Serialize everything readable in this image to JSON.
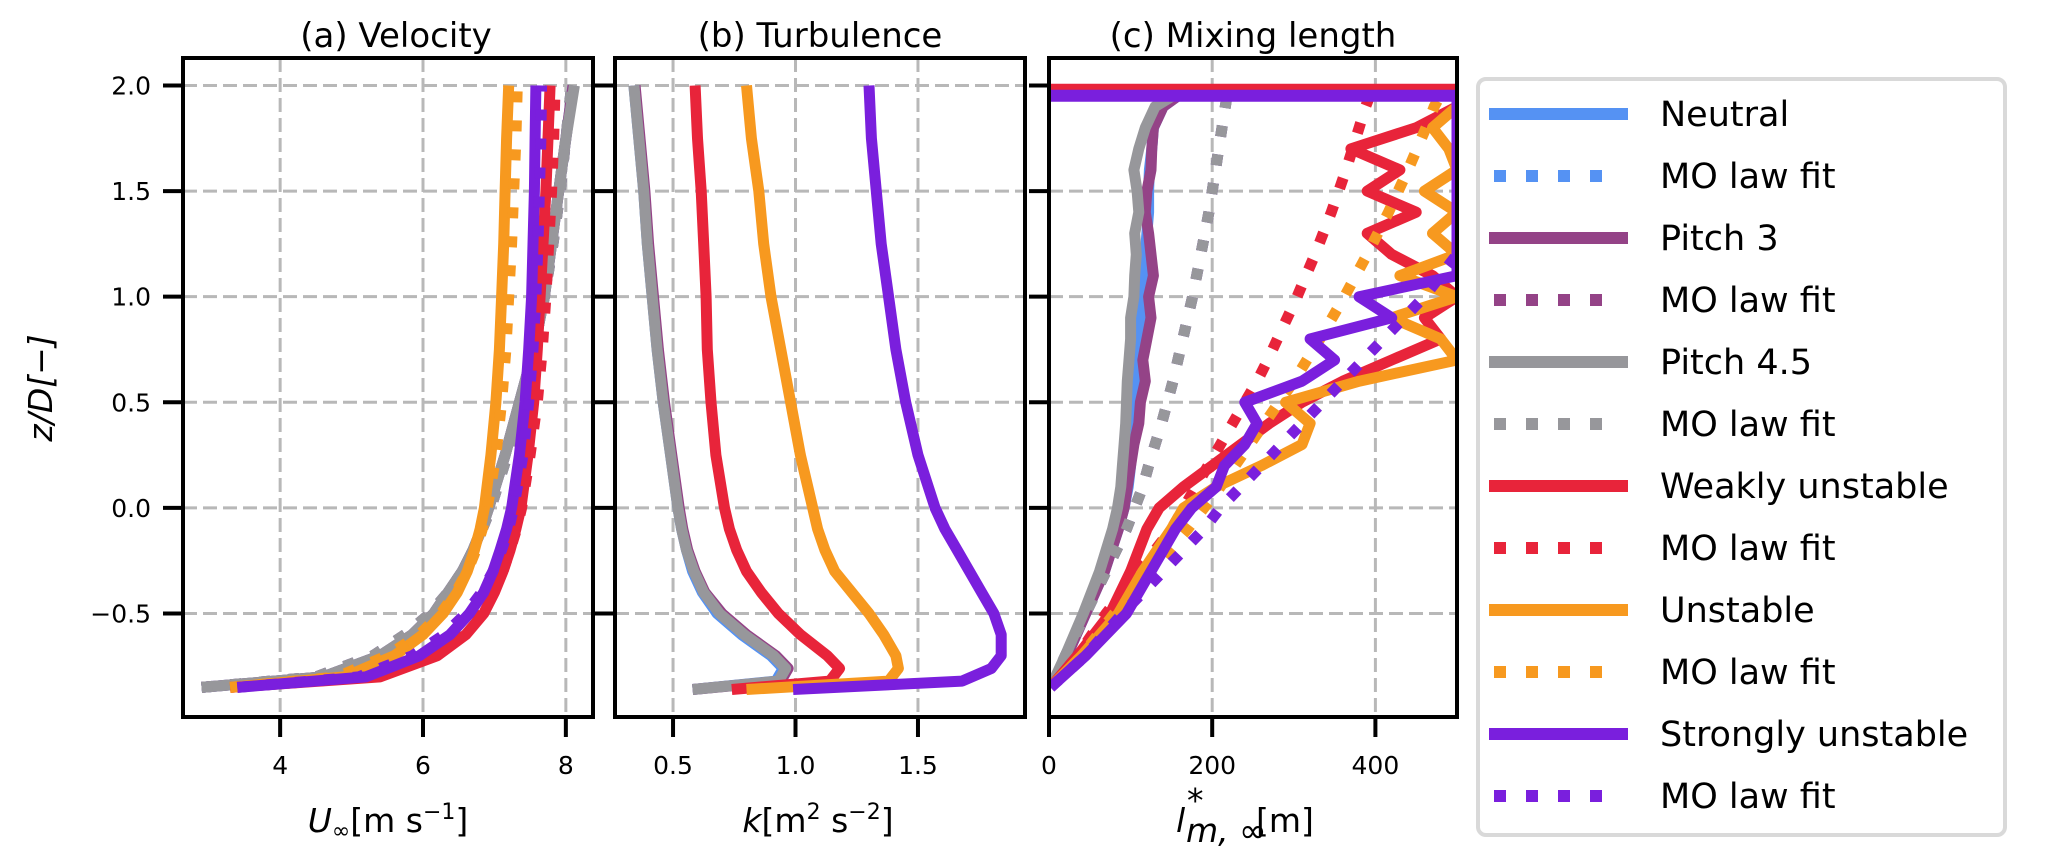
{
  "chart_data": [
    {
      "type": "line",
      "title": "(a) Velocity",
      "xlabel_main": "U",
      "xlabel_sub": "∞",
      "xlabel_unit": "[m s",
      "xlabel_sup": "−1",
      "xlabel_close": "]",
      "ylabel": "z/D[−]",
      "xlim": [
        2.64,
        8.38
      ],
      "ylim": [
        -0.99,
        2.13
      ],
      "xticks": [
        4,
        6,
        8
      ],
      "xtick_labels": [
        "4",
        "6",
        "8"
      ],
      "yticks": [
        2.0,
        1.5,
        1.0,
        0.5,
        0.0,
        -0.5
      ],
      "ytick_labels": [
        "2.0",
        "1.5",
        "1.0",
        "0.5",
        "0.0",
        "−0.5"
      ],
      "grid": true,
      "z": [
        -0.85,
        -0.8,
        -0.7,
        -0.6,
        -0.5,
        -0.4,
        -0.3,
        -0.2,
        -0.1,
        0.0,
        0.25,
        0.5,
        0.75,
        1.0,
        1.25,
        1.5,
        1.75,
        2.0
      ],
      "series": [
        {
          "name": "Neutral",
          "style": "solid",
          "values": [
            2.9,
            4.6,
            5.4,
            5.85,
            6.15,
            6.35,
            6.55,
            6.7,
            6.82,
            6.92,
            7.15,
            7.35,
            7.55,
            7.7,
            7.8,
            7.9,
            8.0,
            8.1
          ]
        },
        {
          "name": "Neutral MO law fit",
          "style": "dotted",
          "values": [
            2.9,
            4.5,
            5.3,
            5.75,
            6.1,
            6.35,
            6.55,
            6.7,
            6.83,
            6.95,
            7.18,
            7.38,
            7.55,
            7.7,
            7.82,
            7.92,
            8.0,
            8.08
          ]
        },
        {
          "name": "Pitch 3",
          "style": "solid",
          "values": [
            2.9,
            4.6,
            5.4,
            5.85,
            6.15,
            6.35,
            6.55,
            6.7,
            6.82,
            6.92,
            7.15,
            7.35,
            7.55,
            7.7,
            7.8,
            7.9,
            8.0,
            8.1
          ]
        },
        {
          "name": "Pitch 3 MO law fit",
          "style": "dotted",
          "values": [
            2.9,
            4.5,
            5.3,
            5.75,
            6.1,
            6.35,
            6.55,
            6.7,
            6.83,
            6.95,
            7.18,
            7.38,
            7.55,
            7.7,
            7.82,
            7.92,
            8.0,
            8.08
          ]
        },
        {
          "name": "Pitch 4.5",
          "style": "solid",
          "values": [
            2.9,
            4.6,
            5.4,
            5.85,
            6.15,
            6.35,
            6.55,
            6.7,
            6.82,
            6.92,
            7.15,
            7.35,
            7.55,
            7.7,
            7.8,
            7.9,
            8.0,
            8.12
          ]
        },
        {
          "name": "Pitch 4.5 MO law fit",
          "style": "dotted",
          "values": [
            2.9,
            4.5,
            5.3,
            5.75,
            6.1,
            6.35,
            6.55,
            6.7,
            6.83,
            6.95,
            7.18,
            7.38,
            7.55,
            7.7,
            7.82,
            7.92,
            8.0,
            8.08
          ]
        },
        {
          "name": "Weakly unstable",
          "style": "solid",
          "values": [
            3.3,
            5.4,
            6.2,
            6.6,
            6.85,
            7.0,
            7.12,
            7.22,
            7.3,
            7.37,
            7.47,
            7.55,
            7.6,
            7.64,
            7.68,
            7.72,
            7.75,
            7.78
          ]
        },
        {
          "name": "Weakly unstable MO law fit",
          "style": "dotted",
          "values": [
            3.3,
            5.3,
            6.1,
            6.5,
            6.8,
            6.98,
            7.12,
            7.22,
            7.31,
            7.38,
            7.5,
            7.6,
            7.67,
            7.72,
            7.76,
            7.8,
            7.83,
            7.85
          ]
        },
        {
          "name": "Unstable",
          "style": "solid",
          "values": [
            3.3,
            4.9,
            5.6,
            6.0,
            6.28,
            6.48,
            6.62,
            6.72,
            6.8,
            6.86,
            6.95,
            7.02,
            7.07,
            7.1,
            7.13,
            7.15,
            7.17,
            7.2
          ]
        },
        {
          "name": "Unstable MO law fit",
          "style": "dotted",
          "values": [
            3.3,
            4.8,
            5.5,
            5.95,
            6.25,
            6.46,
            6.62,
            6.74,
            6.83,
            6.9,
            7.02,
            7.1,
            7.16,
            7.2,
            7.24,
            7.27,
            7.3,
            7.32
          ]
        },
        {
          "name": "Strongly unstable",
          "style": "solid",
          "values": [
            3.4,
            5.2,
            5.95,
            6.38,
            6.65,
            6.85,
            6.98,
            7.08,
            7.17,
            7.24,
            7.35,
            7.43,
            7.48,
            7.52,
            7.54,
            7.56,
            7.57,
            7.58
          ]
        },
        {
          "name": "Strongly unstable MO law fit",
          "style": "dotted",
          "values": [
            3.4,
            5.1,
            5.85,
            6.3,
            6.6,
            6.82,
            6.98,
            7.1,
            7.2,
            7.27,
            7.4,
            7.48,
            7.54,
            7.58,
            7.61,
            7.63,
            7.65,
            7.66
          ]
        }
      ]
    },
    {
      "type": "line",
      "title": "(b) Turbulence",
      "xlabel_main": "k",
      "xlabel_unit": "[m",
      "xlabel_sup": "2",
      "xlabel_unit2": " s",
      "xlabel_sup2": "−2",
      "xlabel_close": "]",
      "xlim": [
        0.263,
        1.937
      ],
      "ylim": [
        -0.99,
        2.13
      ],
      "xticks": [
        0.5,
        1.0,
        1.5
      ],
      "xtick_labels": [
        "0.5",
        "1.0",
        "1.5"
      ],
      "yticks": [
        2.0,
        1.5,
        1.0,
        0.5,
        0.0,
        -0.5
      ],
      "grid": true,
      "z": [
        -0.86,
        -0.82,
        -0.76,
        -0.7,
        -0.6,
        -0.5,
        -0.4,
        -0.3,
        -0.2,
        -0.1,
        0.0,
        0.25,
        0.5,
        0.75,
        1.0,
        1.25,
        1.5,
        1.75,
        2.0
      ],
      "series": [
        {
          "name": "Neutral",
          "style": "solid",
          "values": [
            0.58,
            0.92,
            0.95,
            0.9,
            0.78,
            0.68,
            0.62,
            0.58,
            0.555,
            0.535,
            0.52,
            0.49,
            0.46,
            0.435,
            0.415,
            0.395,
            0.38,
            0.36,
            0.34
          ]
        },
        {
          "name": "Pitch 3",
          "style": "solid",
          "values": [
            0.58,
            0.94,
            0.97,
            0.92,
            0.8,
            0.7,
            0.63,
            0.59,
            0.56,
            0.54,
            0.525,
            0.495,
            0.465,
            0.44,
            0.42,
            0.4,
            0.385,
            0.365,
            0.345
          ]
        },
        {
          "name": "Pitch 4.5",
          "style": "solid",
          "values": [
            0.58,
            0.93,
            0.96,
            0.91,
            0.79,
            0.69,
            0.625,
            0.585,
            0.555,
            0.535,
            0.52,
            0.49,
            0.46,
            0.435,
            0.415,
            0.395,
            0.38,
            0.36,
            0.34
          ]
        },
        {
          "name": "Weakly unstable",
          "style": "solid",
          "values": [
            0.74,
            1.14,
            1.18,
            1.13,
            1.02,
            0.93,
            0.86,
            0.8,
            0.76,
            0.73,
            0.71,
            0.675,
            0.655,
            0.64,
            0.635,
            0.625,
            0.615,
            0.6,
            0.59
          ]
        },
        {
          "name": "Unstable",
          "style": "solid",
          "values": [
            0.8,
            1.38,
            1.42,
            1.41,
            1.36,
            1.3,
            1.23,
            1.16,
            1.12,
            1.09,
            1.07,
            1.02,
            0.98,
            0.94,
            0.9,
            0.87,
            0.85,
            0.82,
            0.8
          ]
        },
        {
          "name": "Strongly unstable",
          "style": "solid",
          "values": [
            0.99,
            1.68,
            1.8,
            1.84,
            1.84,
            1.81,
            1.76,
            1.71,
            1.66,
            1.61,
            1.57,
            1.5,
            1.45,
            1.41,
            1.38,
            1.35,
            1.33,
            1.31,
            1.3
          ]
        }
      ]
    },
    {
      "type": "line",
      "title": "(c) Mixing length",
      "xlabel_main": "l",
      "xlabel_sup": "*",
      "xlabel_sub": "m, ∞",
      "xlabel_unit": "[m]",
      "xlim": [
        0,
        500
      ],
      "ylim": [
        -0.99,
        2.13
      ],
      "xticks": [
        0,
        200,
        400
      ],
      "xtick_labels": [
        "0",
        "200",
        "400"
      ],
      "yticks": [
        2.0,
        1.5,
        1.0,
        0.5,
        0.0,
        -0.5
      ],
      "grid": true,
      "z": [
        -0.85,
        -0.7,
        -0.5,
        -0.3,
        -0.1,
        0.0,
        0.1,
        0.2,
        0.3,
        0.4,
        0.5,
        0.6,
        0.7,
        0.8,
        0.9,
        1.0,
        1.1,
        1.2,
        1.3,
        1.4,
        1.5,
        1.6,
        1.7,
        1.8,
        1.9,
        1.97
      ],
      "top_band": {
        "z": 1.97,
        "value_range": [
          0,
          500
        ]
      },
      "series": [
        {
          "name": "Neutral",
          "style": "solid",
          "values": [
            2,
            22,
            45,
            68,
            85,
            92,
            97,
            100,
            102,
            105,
            107,
            108,
            110,
            112,
            112,
            115,
            116,
            118,
            120,
            122,
            122,
            123,
            126,
            128,
            140,
            165
          ]
        },
        {
          "name": "Neutral MO law fit",
          "style": "dotted",
          "values": [
            2,
            20,
            45,
            70,
            95,
            105,
            115,
            122,
            130,
            138,
            145,
            152,
            158,
            164,
            170,
            176,
            181,
            186,
            191,
            196,
            200,
            204,
            208,
            212,
            216,
            219
          ]
        },
        {
          "name": "Pitch 3",
          "style": "solid",
          "values": [
            2,
            22,
            45,
            68,
            85,
            92,
            96,
            100,
            104,
            110,
            112,
            118,
            115,
            120,
            125,
            122,
            128,
            125,
            122,
            118,
            120,
            125,
            126,
            128,
            140,
            165
          ]
        },
        {
          "name": "Pitch 3 MO law fit",
          "style": "dotted",
          "values": [
            2,
            20,
            45,
            70,
            95,
            105,
            115,
            122,
            130,
            138,
            145,
            152,
            158,
            164,
            170,
            176,
            181,
            186,
            191,
            196,
            200,
            204,
            208,
            212,
            216,
            219
          ]
        },
        {
          "name": "Pitch 4.5",
          "style": "solid",
          "values": [
            2,
            20,
            42,
            62,
            78,
            84,
            88,
            90,
            92,
            94,
            95,
            96,
            98,
            100,
            100,
            104,
            105,
            107,
            105,
            110,
            108,
            104,
            110,
            118,
            130,
            160
          ]
        },
        {
          "name": "Pitch 4.5 MO law fit",
          "style": "dotted",
          "values": [
            2,
            20,
            45,
            70,
            95,
            105,
            115,
            122,
            130,
            138,
            145,
            152,
            158,
            164,
            170,
            176,
            181,
            186,
            191,
            196,
            200,
            204,
            208,
            212,
            216,
            219
          ]
        },
        {
          "name": "Weakly unstable",
          "style": "solid",
          "values": [
            2,
            35,
            75,
            100,
            120,
            135,
            165,
            200,
            235,
            270,
            310,
            360,
            420,
            480,
            460,
            500,
            470,
            420,
            390,
            450,
            390,
            430,
            370,
            450,
            500,
            500
          ]
        },
        {
          "name": "Weakly unstable MO law fit",
          "style": "dotted",
          "values": [
            2,
            35,
            70,
            110,
            150,
            165,
            180,
            195,
            210,
            225,
            240,
            255,
            268,
            280,
            292,
            304,
            315,
            326,
            336,
            346,
            355,
            364,
            372,
            380,
            388,
            395
          ]
        },
        {
          "name": "Unstable",
          "style": "solid",
          "values": [
            2,
            40,
            85,
            115,
            150,
            165,
            205,
            260,
            310,
            320,
            290,
            380,
            500,
            480,
            420,
            500,
            430,
            500,
            470,
            500,
            460,
            500,
            490,
            470,
            500,
            500
          ]
        },
        {
          "name": "Unstable MO law fit",
          "style": "dotted",
          "values": [
            2,
            40,
            80,
            125,
            170,
            190,
            210,
            228,
            246,
            264,
            282,
            300,
            316,
            332,
            347,
            362,
            376,
            390,
            403,
            416,
            428,
            440,
            451,
            462,
            472,
            482
          ]
        },
        {
          "name": "Strongly unstable",
          "style": "solid",
          "values": [
            2,
            45,
            95,
            125,
            155,
            175,
            205,
            215,
            240,
            255,
            240,
            310,
            350,
            320,
            420,
            380,
            500,
            500,
            500,
            500,
            500,
            500,
            500,
            500,
            500,
            500
          ]
        },
        {
          "name": "Strongly unstable MO law fit",
          "style": "dotted",
          "values": [
            2,
            45,
            90,
            140,
            190,
            210,
            235,
            260,
            285,
            310,
            335,
            360,
            385,
            410,
            435,
            460,
            480,
            500,
            500,
            500,
            500,
            500,
            500,
            500,
            500,
            500
          ]
        }
      ]
    }
  ],
  "legend": {
    "placement": "right",
    "entries": [
      {
        "label": "Neutral",
        "color": "#5592F3",
        "style": "solid"
      },
      {
        "label": "MO law fit",
        "color": "#5592F3",
        "style": "dotted"
      },
      {
        "label": "Pitch 3",
        "color": "#944387",
        "style": "solid"
      },
      {
        "label": "MO law fit",
        "color": "#944387",
        "style": "dotted"
      },
      {
        "label": "Pitch 4.5",
        "color": "#97979B",
        "style": "solid"
      },
      {
        "label": "MO law fit",
        "color": "#97979B",
        "style": "dotted"
      },
      {
        "label": "Weakly unstable",
        "color": "#E8243A",
        "style": "solid"
      },
      {
        "label": "MO law fit",
        "color": "#E8243A",
        "style": "dotted"
      },
      {
        "label": "Unstable",
        "color": "#F7991F",
        "style": "solid"
      },
      {
        "label": "MO law fit",
        "color": "#F7991F",
        "style": "dotted"
      },
      {
        "label": "Strongly unstable",
        "color": "#7A1FDD",
        "style": "solid"
      },
      {
        "label": "MO law fit",
        "color": "#7A1FDD",
        "style": "dotted"
      }
    ]
  },
  "colors": {
    "Neutral": "#5592F3",
    "Pitch 3": "#944387",
    "Pitch 4.5": "#97979B",
    "Weakly unstable": "#E8243A",
    "Unstable": "#F7991F",
    "Strongly unstable": "#7A1FDD",
    "grid": "#B8B8B8"
  }
}
